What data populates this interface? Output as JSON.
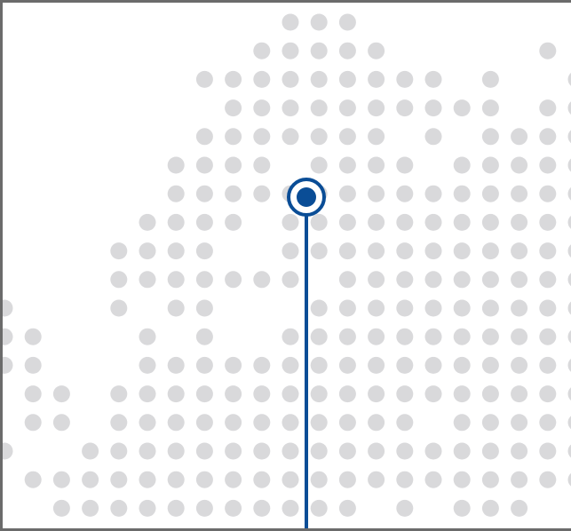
{
  "colors": {
    "background": "#ffffff",
    "dot": "#d9d9db",
    "frame": "#6b6b6b",
    "marker": "#0a4d96",
    "marker_ring_fill": "#ffffff"
  },
  "map": {
    "style": "dot-matrix",
    "marker_icon": "location-pin-icon"
  }
}
